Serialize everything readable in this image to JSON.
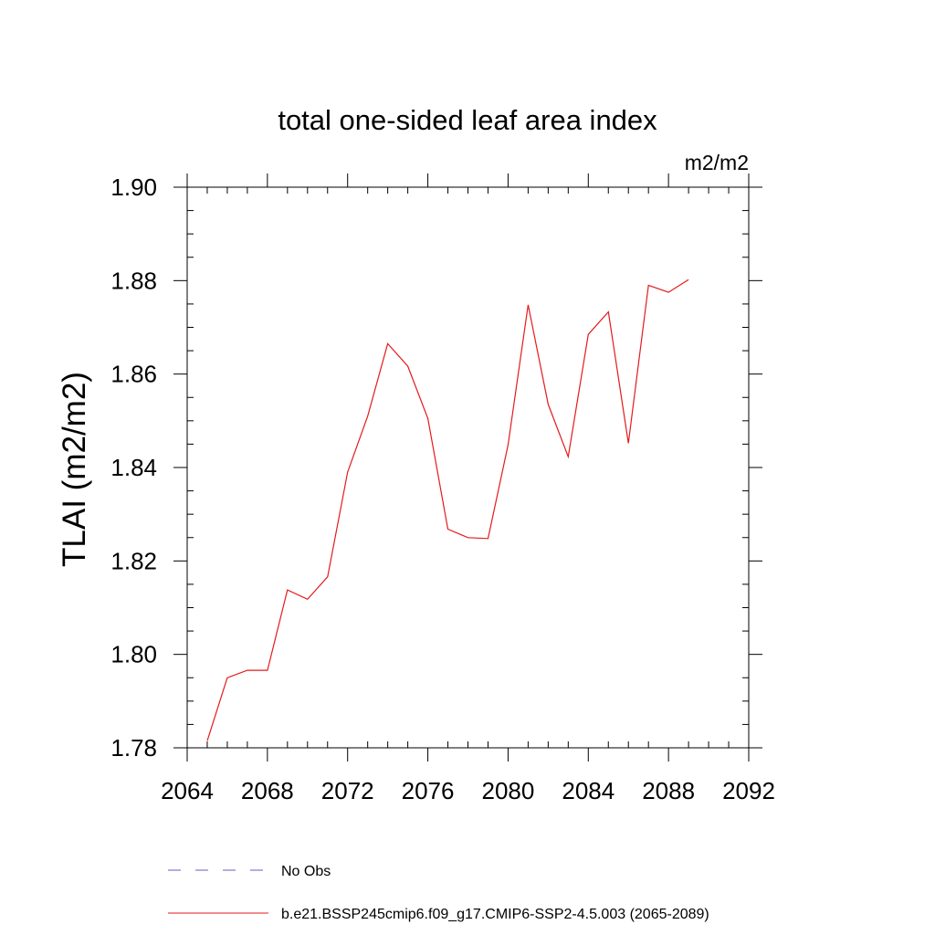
{
  "chart_data": {
    "type": "line",
    "title": "total one-sided leaf area index",
    "units": "m2/m2",
    "xlabel": "",
    "ylabel": "TLAI  (m2/m2)",
    "xlim": [
      2064,
      2092
    ],
    "ylim": [
      1.78,
      1.9
    ],
    "x_ticks": [
      "2064",
      "2068",
      "2072",
      "2076",
      "2080",
      "2084",
      "2088",
      "2092"
    ],
    "y_ticks": [
      "1.78",
      "1.80",
      "1.82",
      "1.84",
      "1.86",
      "1.88",
      "1.90"
    ],
    "grid": false,
    "legend_placement": "bottom",
    "series": [
      {
        "name": "b.e21.BSSP245cmip6.f09_g17.CMIP6-SSP2-4.5.003 (2065-2089)",
        "color": "#e41a1c",
        "style": "solid",
        "x": [
          2065,
          2066,
          2067,
          2068,
          2069,
          2070,
          2071,
          2072,
          2073,
          2074,
          2075,
          2076,
          2077,
          2078,
          2079,
          2080,
          2081,
          2082,
          2083,
          2084,
          2085,
          2086,
          2087,
          2088,
          2089
        ],
        "y": [
          1.7815,
          1.795,
          1.7966,
          1.7966,
          1.8138,
          1.8118,
          1.8166,
          1.839,
          1.851,
          1.8665,
          1.8617,
          1.8505,
          1.8268,
          1.825,
          1.8248,
          1.8448,
          1.8748,
          1.8535,
          1.8423,
          1.8685,
          1.8733,
          1.8452,
          1.879,
          1.8775,
          1.8802
        ]
      }
    ],
    "legend": [
      {
        "label": "No Obs",
        "color": "#6a5acd",
        "style": "dashed"
      },
      {
        "label": "b.e21.BSSP245cmip6.f09_g17.CMIP6-SSP2-4.5.003 (2065-2089)",
        "color": "#e41a1c",
        "style": "solid"
      }
    ]
  }
}
